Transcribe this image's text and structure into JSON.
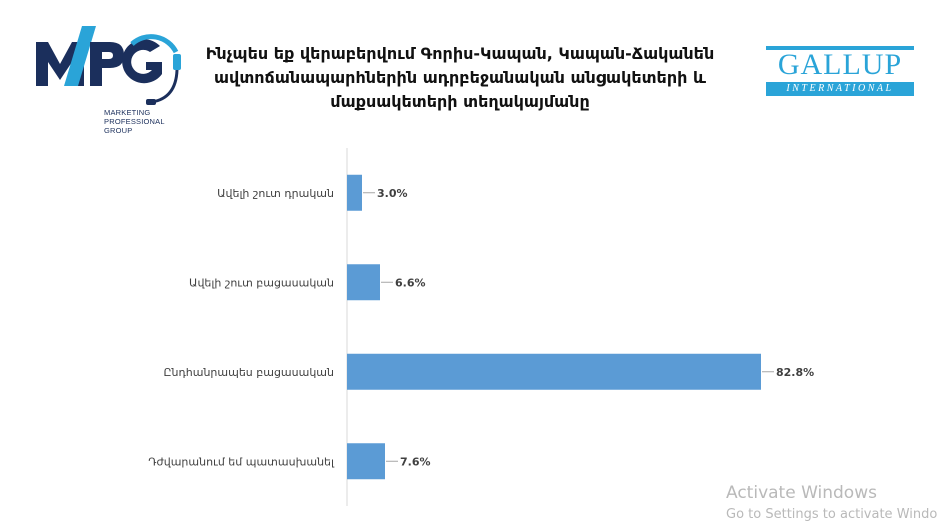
{
  "logo_left": {
    "name": "MPG",
    "tagline": "MARKETING\nPROFESSIONAL\nGROUP",
    "colors": {
      "navy": "#1b2f5c",
      "cyan": "#2aa4d8"
    }
  },
  "logo_right": {
    "word": "GALLUP",
    "band": "INTERNATIONAL",
    "color": "#2aa4d8"
  },
  "chart_data": {
    "type": "bar",
    "orientation": "horizontal",
    "title": "Ինչպես եք վերաբերվում Գորիս-Կապան, Կապան-Ճականեն ավտոճանապարհներին ադրբեջանական անցակետերի և մաքսակետերի տեղակայմանը",
    "categories": [
      "Ավելի շուտ դրական",
      "Ավելի շուտ բացասական",
      "Ընդհանրապես բացասական",
      "Դժվարանում եմ պատասխանել"
    ],
    "values": [
      3.0,
      6.6,
      82.8,
      7.6
    ],
    "value_labels": [
      "3.0%",
      "6.6%",
      "82.8%",
      "7.6%"
    ],
    "unit": "%",
    "xlim": [
      0,
      85
    ],
    "bar_color": "#5b9bd5",
    "grid": false,
    "legend": "none"
  },
  "watermark": {
    "line1": "Activate Windows",
    "line2": "Go to Settings to activate Windo"
  }
}
